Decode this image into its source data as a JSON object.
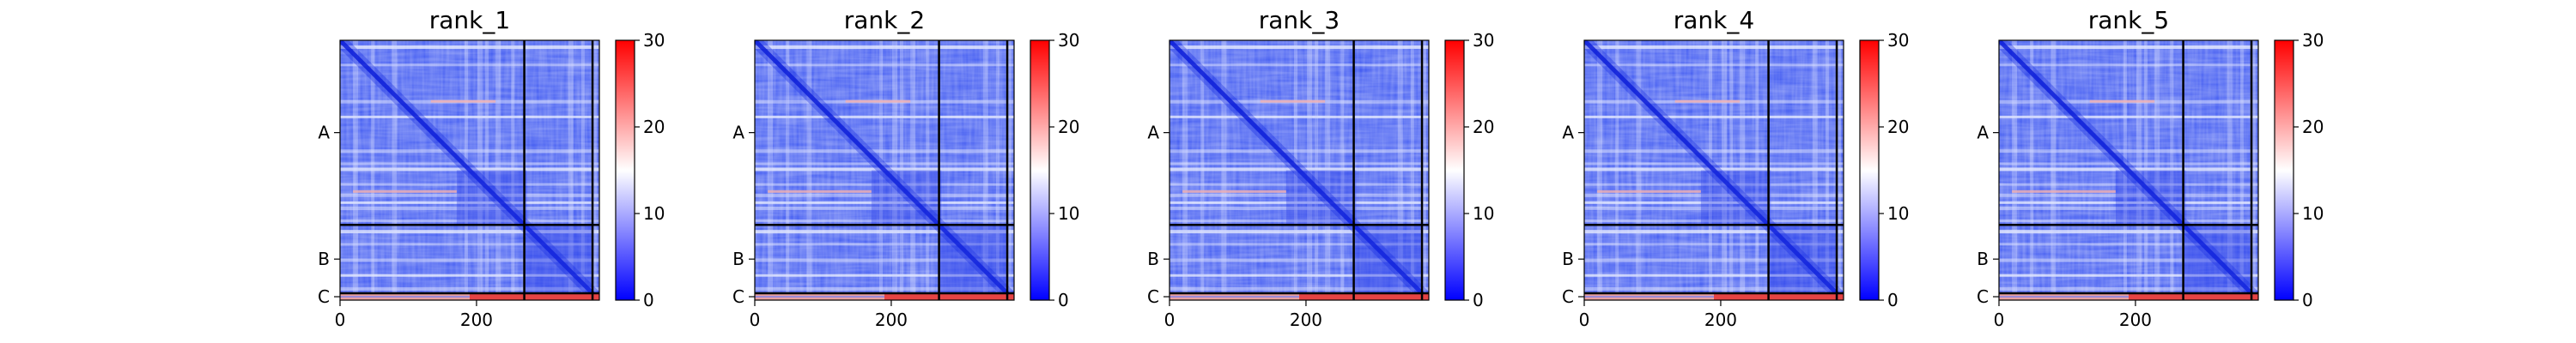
{
  "chart_data": [
    {
      "type": "heatmap",
      "title": "rank_1",
      "xticks": [
        "0",
        "200"
      ],
      "xtick_values": [
        0,
        200
      ],
      "xlim": [
        0,
        380
      ],
      "chain_labels": [
        "A",
        "B",
        "C"
      ],
      "chain_bounds": [
        [
          0,
          270
        ],
        [
          270,
          370
        ],
        [
          370,
          380
        ]
      ],
      "colorbar": {
        "min": 0,
        "max": 30,
        "ticks": [
          "0",
          "10",
          "20",
          "30"
        ],
        "tick_values": [
          0,
          10,
          20,
          30
        ],
        "cmap": "bwr"
      },
      "grid": false
    },
    {
      "type": "heatmap",
      "title": "rank_2",
      "xticks": [
        "0",
        "200"
      ],
      "xtick_values": [
        0,
        200
      ],
      "xlim": [
        0,
        380
      ],
      "chain_labels": [
        "A",
        "B",
        "C"
      ],
      "chain_bounds": [
        [
          0,
          270
        ],
        [
          270,
          370
        ],
        [
          370,
          380
        ]
      ],
      "colorbar": {
        "min": 0,
        "max": 30,
        "ticks": [
          "0",
          "10",
          "20",
          "30"
        ],
        "tick_values": [
          0,
          10,
          20,
          30
        ],
        "cmap": "bwr"
      },
      "grid": false
    },
    {
      "type": "heatmap",
      "title": "rank_3",
      "xticks": [
        "0",
        "200"
      ],
      "xtick_values": [
        0,
        200
      ],
      "xlim": [
        0,
        380
      ],
      "chain_labels": [
        "A",
        "B",
        "C"
      ],
      "chain_bounds": [
        [
          0,
          270
        ],
        [
          270,
          370
        ],
        [
          370,
          380
        ]
      ],
      "colorbar": {
        "min": 0,
        "max": 30,
        "ticks": [
          "0",
          "10",
          "20",
          "30"
        ],
        "tick_values": [
          0,
          10,
          20,
          30
        ],
        "cmap": "bwr"
      },
      "grid": false
    },
    {
      "type": "heatmap",
      "title": "rank_4",
      "xticks": [
        "0",
        "200"
      ],
      "xtick_values": [
        0,
        200
      ],
      "xlim": [
        0,
        380
      ],
      "chain_labels": [
        "A",
        "B",
        "C"
      ],
      "chain_bounds": [
        [
          0,
          270
        ],
        [
          270,
          370
        ],
        [
          370,
          380
        ]
      ],
      "colorbar": {
        "min": 0,
        "max": 30,
        "ticks": [
          "0",
          "10",
          "20",
          "30"
        ],
        "tick_values": [
          0,
          10,
          20,
          30
        ],
        "cmap": "bwr"
      },
      "grid": false
    },
    {
      "type": "heatmap",
      "title": "rank_5",
      "xticks": [
        "0",
        "200"
      ],
      "xtick_values": [
        0,
        200
      ],
      "xlim": [
        0,
        380
      ],
      "chain_labels": [
        "A",
        "B",
        "C"
      ],
      "chain_bounds": [
        [
          0,
          270
        ],
        [
          270,
          370
        ],
        [
          370,
          380
        ]
      ],
      "colorbar": {
        "min": 0,
        "max": 30,
        "ticks": [
          "0",
          "10",
          "20",
          "30"
        ],
        "tick_values": [
          0,
          10,
          20,
          30
        ],
        "cmap": "bwr"
      },
      "grid": false
    }
  ],
  "colors": {
    "low": "#0000ff",
    "mid": "#ffffff",
    "high": "#ff0000",
    "axis": "#000000"
  }
}
